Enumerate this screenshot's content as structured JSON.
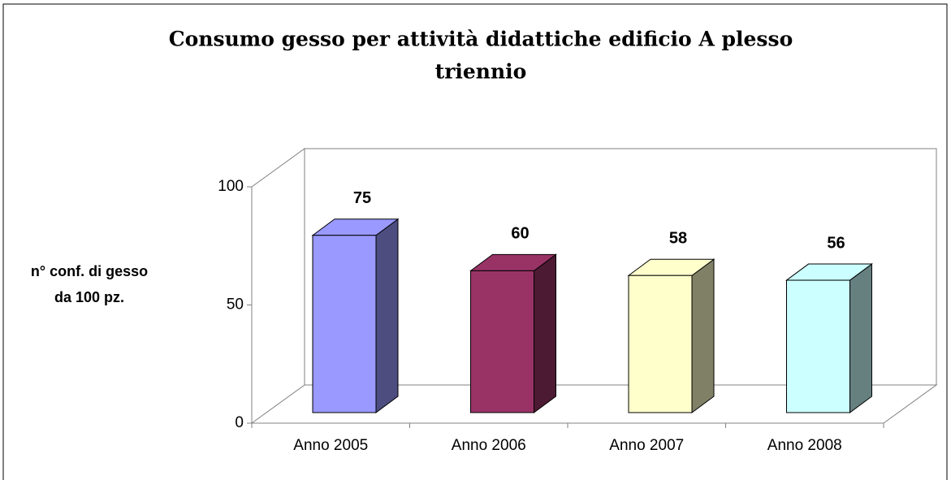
{
  "chart_data": {
    "type": "bar3d",
    "title": [
      "Consumo gesso per attività didattiche edificio A plesso",
      "triennio"
    ],
    "y_label": [
      "n° conf. di gesso",
      "da 100 pz."
    ],
    "categories": [
      "Anno 2005",
      "Anno 2006",
      "Anno 2007",
      "Anno 2008"
    ],
    "values": [
      75,
      60,
      58,
      56
    ],
    "colors": [
      "#9999ff",
      "#993366",
      "#ffffcc",
      "#ccffff"
    ],
    "ylim": [
      0,
      100
    ],
    "yticks": [
      0,
      50,
      100
    ],
    "grid": false
  }
}
